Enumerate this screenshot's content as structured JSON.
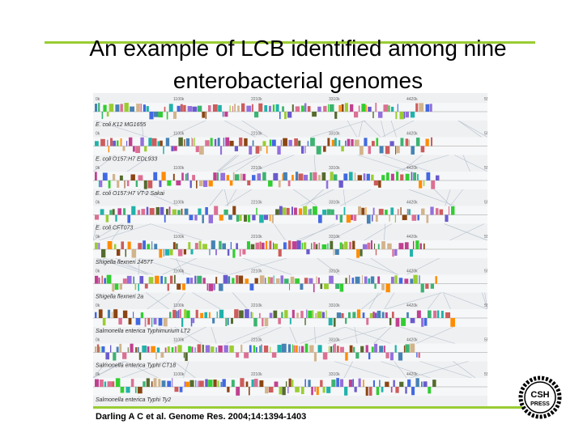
{
  "slide": {
    "title_lines": [
      "An example of LCB identified among nine",
      "enterobacterial genomes"
    ],
    "figure": {
      "ruler_labels": [
        "0k",
        "1100k",
        "2210k",
        "3310k",
        "4420k",
        "5520k"
      ],
      "genomes": [
        "E. coli K12 MG1655",
        "E. coli O157:H7 EDL933",
        "E. coli O157:H7 VT-2 Sakai",
        "E. coli CFT073",
        "Shigella flexneri 2457T",
        "Shigella flexneri 2a",
        "Salmonella enterica Typhimurium LT2",
        "Salmonella enterica Typhi CT18",
        "Salmonella enterica Typhi Ty2"
      ]
    },
    "citation": "Darling A C et al. Genome Res. 2004;14:1394-1403",
    "logo": [
      "CSH",
      "PRESS"
    ]
  }
}
